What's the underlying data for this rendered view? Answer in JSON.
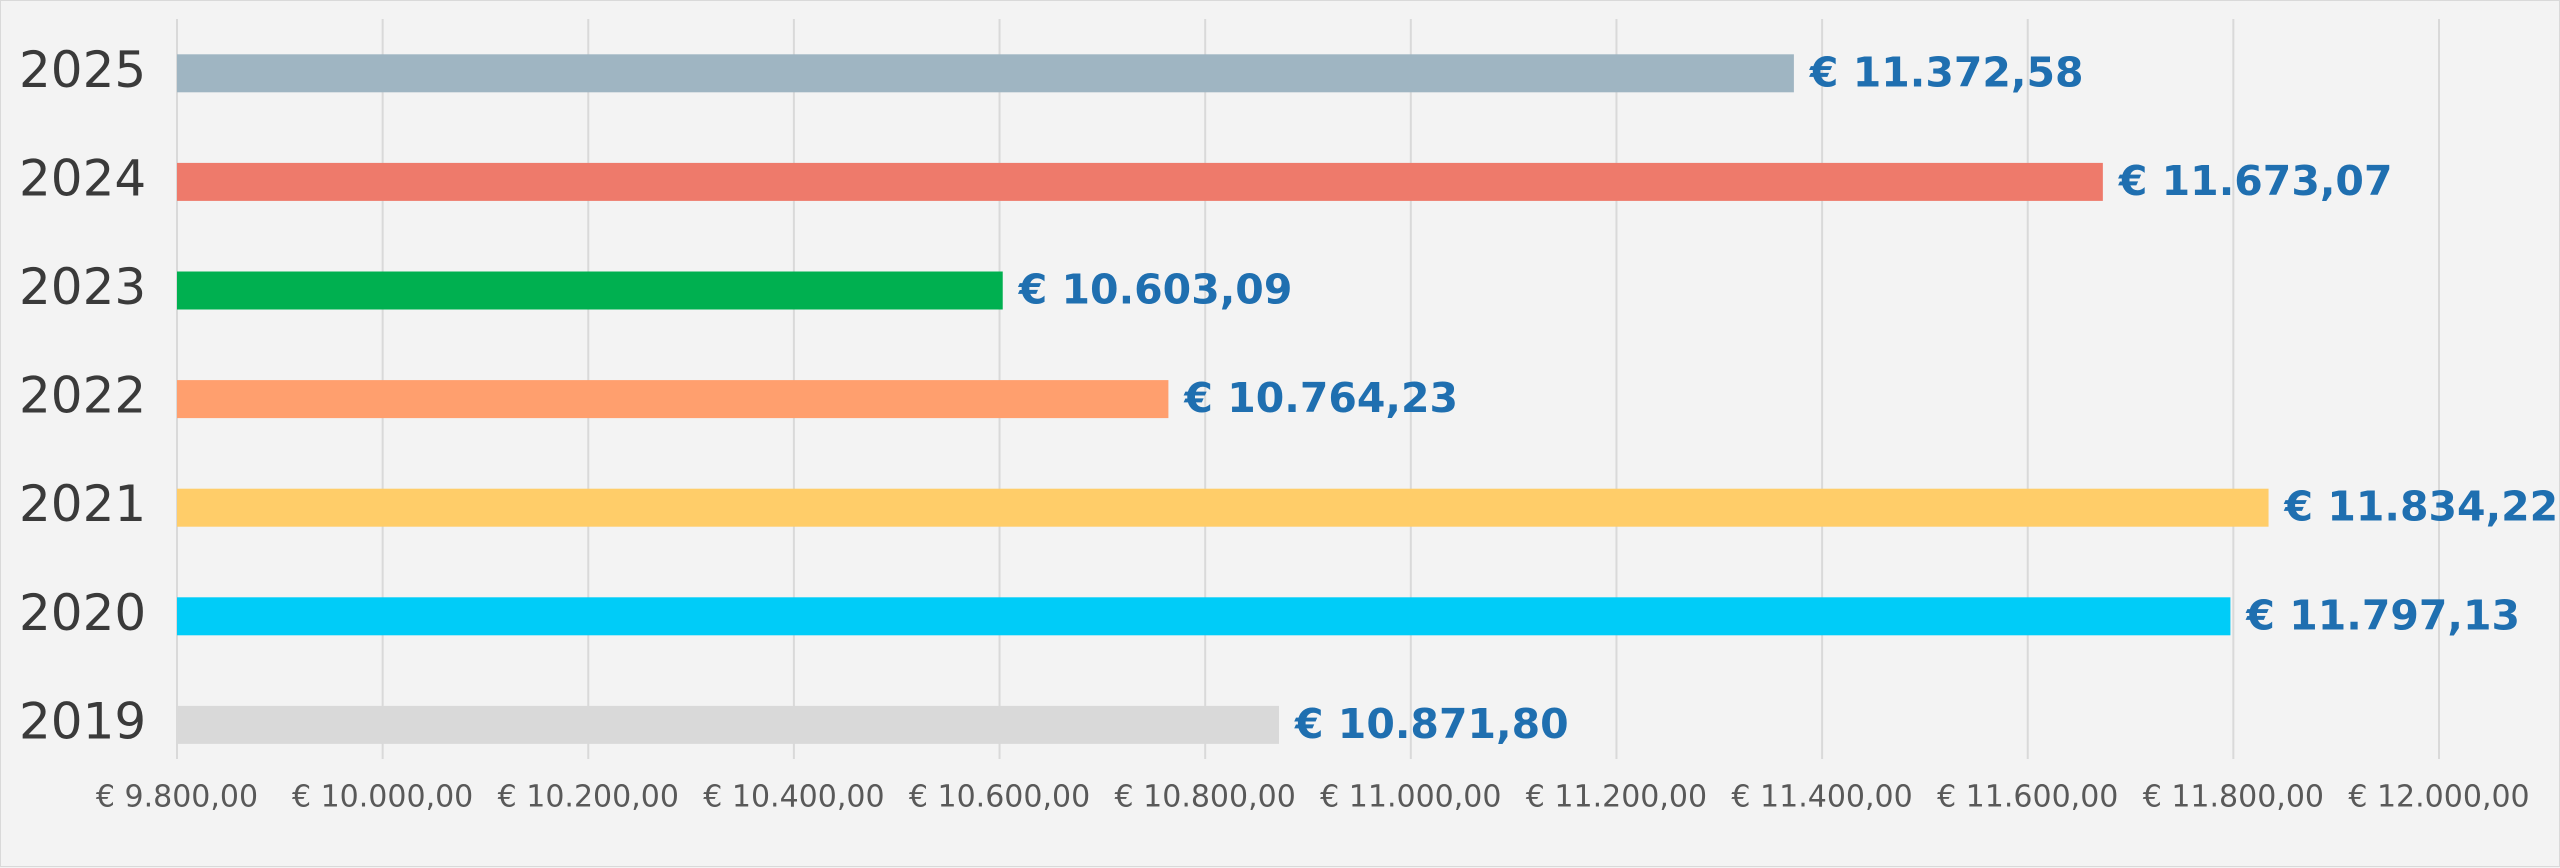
{
  "chart_data": {
    "type": "bar",
    "orientation": "horizontal",
    "title": "",
    "xlabel": "",
    "ylabel": "",
    "categories": [
      "2019",
      "2020",
      "2021",
      "2022",
      "2023",
      "2024",
      "2025"
    ],
    "values": [
      10871.8,
      11797.13,
      11834.22,
      10764.23,
      10603.09,
      11673.07,
      11372.58
    ],
    "data_labels": [
      "€ 10.871,80",
      "€ 11.797,13",
      "€ 11.834,22",
      "€ 10.764,23",
      "€ 10.603,09",
      "€ 11.673,07",
      "€ 11.372,58"
    ],
    "bar_colors": [
      "#d9d9d9",
      "#00ccf8",
      "#ffcd69",
      "#ff9f6e",
      "#00b050",
      "#ee7a6b",
      "#9fb5c2"
    ],
    "xlim": [
      9800,
      12000
    ],
    "x_ticks": [
      9800,
      10000,
      10200,
      10400,
      10600,
      10800,
      11000,
      11200,
      11400,
      11600,
      11800,
      12000
    ],
    "x_tick_labels": [
      "€ 9.800,00",
      "€ 10.000,00",
      "€ 10.200,00",
      "€ 10.400,00",
      "€ 10.600,00",
      "€ 10.800,00",
      "€ 11.000,00",
      "€ 11.200,00",
      "€ 11.400,00",
      "€ 11.600,00",
      "€ 11.800,00",
      "€ 12.000,00"
    ],
    "grid": true,
    "legend": "none",
    "label_color": "#1f6fb0",
    "background_color": "#f3f3f3"
  }
}
